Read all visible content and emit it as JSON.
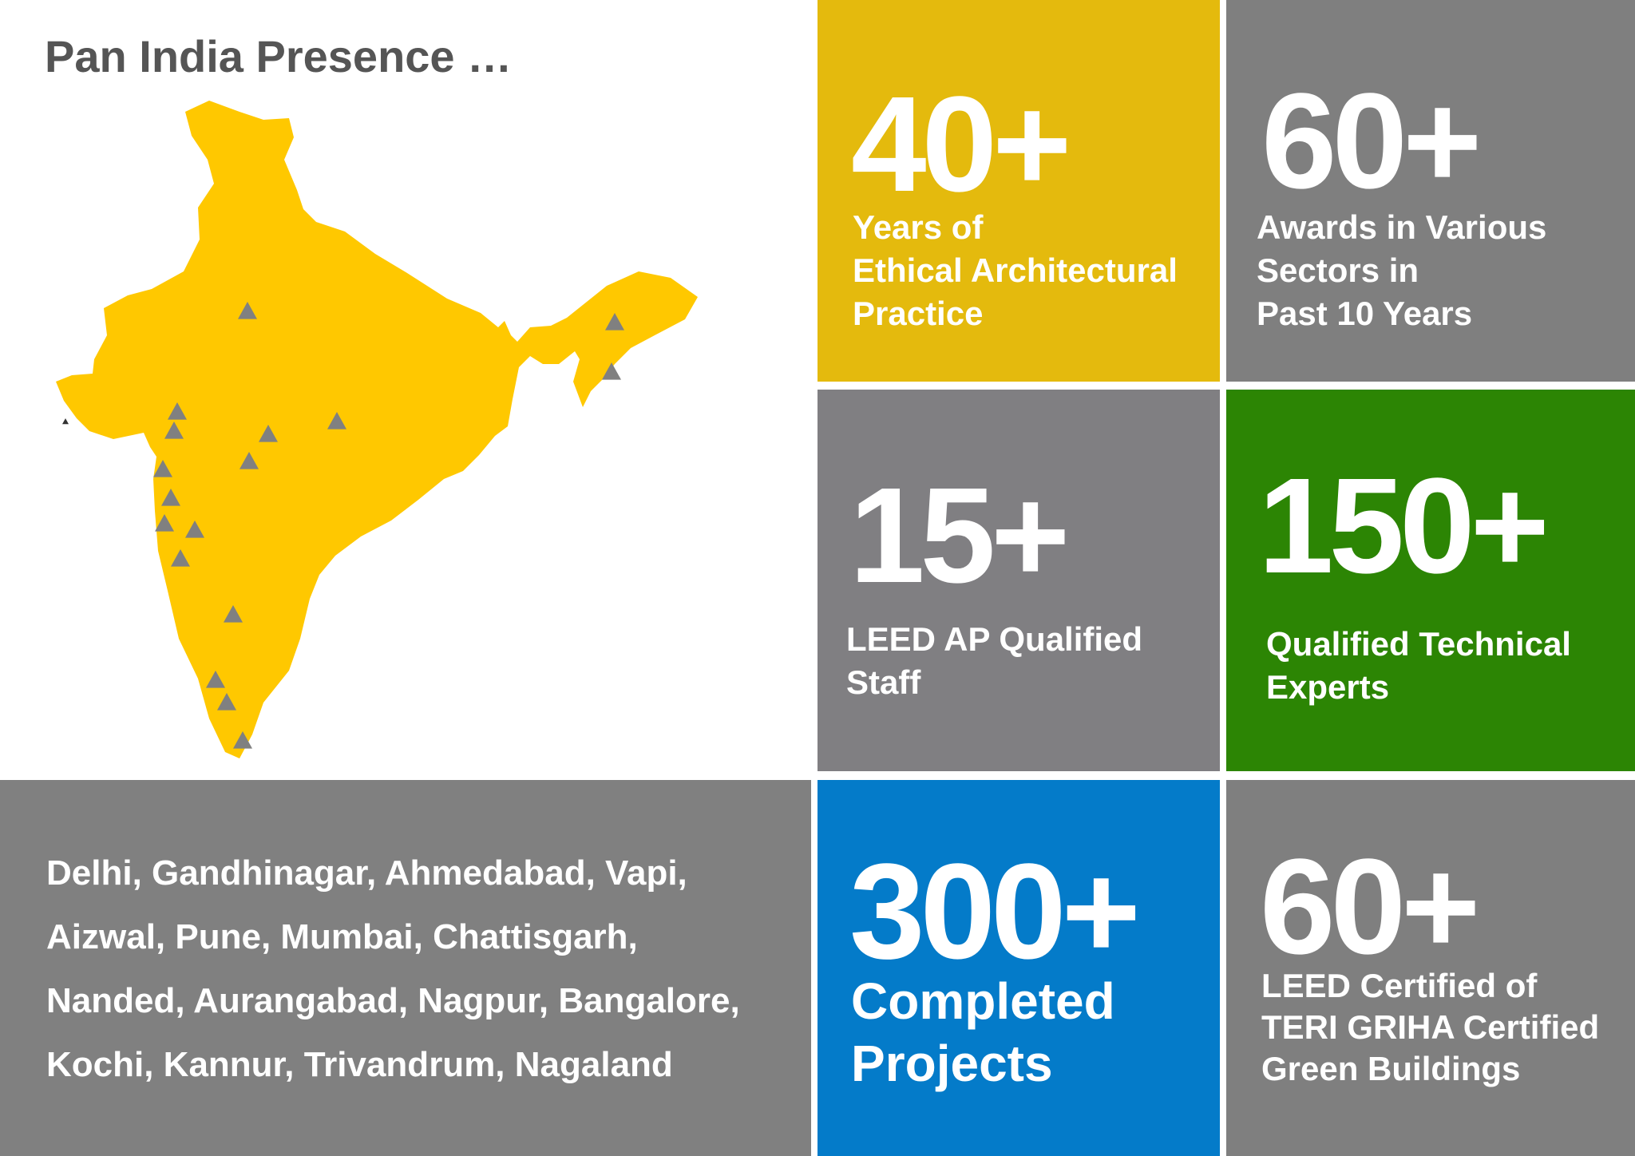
{
  "title": "Pan India Presence …",
  "map": {
    "land_color": "#FFC800",
    "marker_color": "#808080",
    "marker_shape": "triangle",
    "marker_count": 18
  },
  "stats": [
    {
      "id": "years",
      "value": "40+",
      "lines": [
        "Years of",
        "Ethical Architectural",
        "Practice"
      ],
      "color": "#E4BA0D"
    },
    {
      "id": "awards",
      "value": "60+",
      "lines": [
        "Awards in Various",
        "Sectors in",
        "Past 10 Years"
      ],
      "color": "#7F7F7F"
    },
    {
      "id": "leed-ap",
      "value": "15+",
      "lines": [
        "LEED AP Qualified",
        "Staff"
      ],
      "color": "#807F82"
    },
    {
      "id": "experts",
      "value": "150+",
      "lines": [
        "Qualified Technical",
        "Experts"
      ],
      "color": "#2C8504"
    },
    {
      "id": "projects",
      "value": "300+",
      "lines": [
        "Completed",
        "Projects"
      ],
      "color": "#047BC9"
    },
    {
      "id": "green",
      "value": "60+",
      "lines": [
        "LEED Certified of",
        "TERI GRIHA Certified",
        "Green Buildings"
      ],
      "color": "#7F7F7F"
    }
  ],
  "cities": {
    "color": "#808080",
    "lines": [
      "Delhi, Gandhinagar, Ahmedabad, Vapi,",
      "Aizwal, Pune, Mumbai, Chattisgarh,",
      "Nanded, Aurangabad, Nagpur, Bangalore,",
      "Kochi, Kannur, Trivandrum, Nagaland"
    ]
  }
}
